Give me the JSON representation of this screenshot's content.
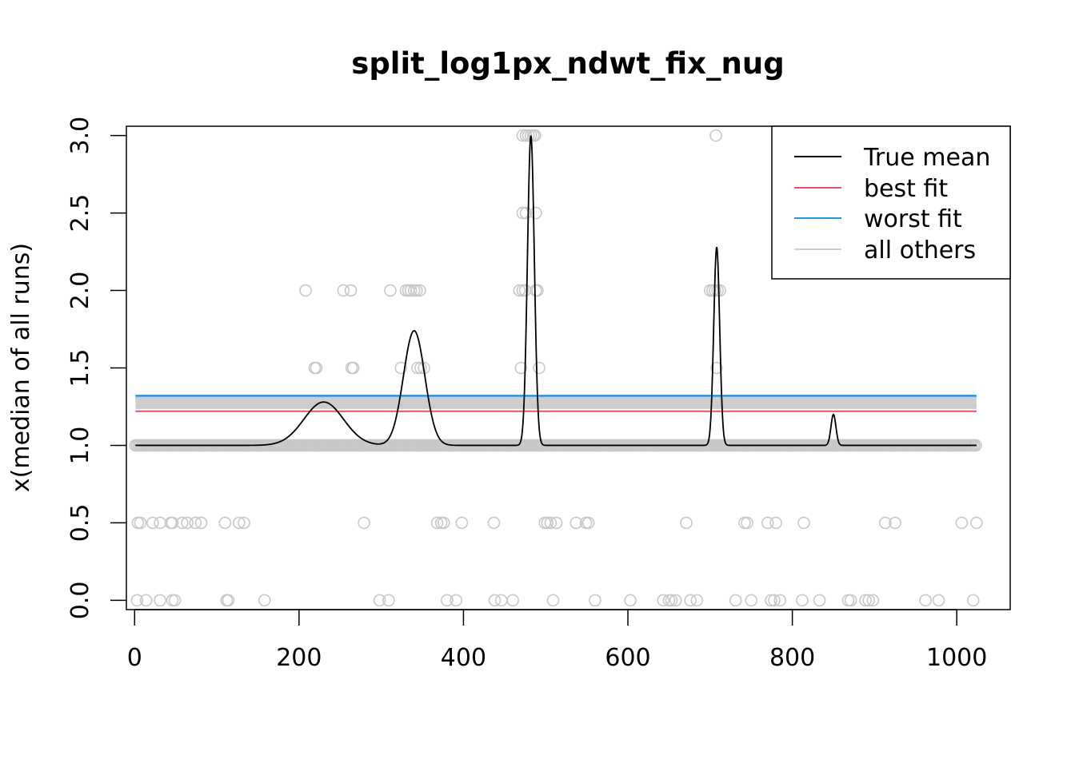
{
  "chart_data": {
    "type": "scatter",
    "title": "split_log1px_ndwt_fix_nug",
    "xlabel": "",
    "ylabel": "x(median of all runs)",
    "xlim": [
      -10,
      1065
    ],
    "ylim": [
      -0.06,
      3.06
    ],
    "xticks": [
      0,
      200,
      400,
      600,
      800,
      1000
    ],
    "yticks": [
      0.0,
      0.5,
      1.0,
      1.5,
      2.0,
      2.5,
      3.0
    ],
    "xtick_labels": [
      "0",
      "200",
      "400",
      "600",
      "800",
      "1000"
    ],
    "ytick_labels": [
      "0.0",
      "0.5",
      "1.0",
      "1.5",
      "2.0",
      "2.5",
      "3.0"
    ],
    "grid": false,
    "legend_position": "top-right",
    "colors": {
      "true_mean": "#000000",
      "best_fit": "#DF536B",
      "worst_fit": "#2297E6",
      "all_others": "#CCCCCC",
      "points": "#C8C8C8"
    },
    "legend": [
      {
        "label": "True mean",
        "color": "#000000"
      },
      {
        "label": "best fit",
        "color": "#DF536B"
      },
      {
        "label": "worst fit",
        "color": "#2297E6"
      },
      {
        "label": "all others",
        "color": "#CCCCCC"
      }
    ],
    "series": [
      {
        "name": "best fit",
        "kind": "hline",
        "y": 1.22,
        "x_range": [
          1,
          1024
        ]
      },
      {
        "name": "worst fit",
        "kind": "hline",
        "y": 1.32,
        "x_range": [
          1,
          1024
        ]
      },
      {
        "name": "all others",
        "kind": "hline_band",
        "y_values": [
          1.24,
          1.25,
          1.26,
          1.27,
          1.28,
          1.29,
          1.3,
          1.31
        ],
        "x_range": [
          1,
          1024
        ]
      },
      {
        "name": "True mean",
        "kind": "curve",
        "baseline": 1.0,
        "bumps": [
          {
            "center": 230,
            "height": 0.28,
            "width": 24
          },
          {
            "center": 340,
            "height": 0.74,
            "width": 13
          },
          {
            "center": 482,
            "height": 2.0,
            "width": 4.2
          },
          {
            "center": 708,
            "height": 1.28,
            "width": 3.6
          },
          {
            "center": 850,
            "height": 0.2,
            "width": 3.0
          }
        ],
        "x_range": [
          1,
          1024
        ]
      },
      {
        "name": "points",
        "kind": "scatter",
        "dense_y1_range": [
          1,
          1024
        ],
        "points": [
          [
            208,
            2.0
          ],
          [
            254,
            2.0
          ],
          [
            263,
            2.0
          ],
          [
            311,
            2.0
          ],
          [
            330,
            2.0
          ],
          [
            333,
            2.0
          ],
          [
            336,
            2.0
          ],
          [
            340,
            2.0
          ],
          [
            343,
            2.0
          ],
          [
            347,
            2.0
          ],
          [
            468,
            2.0
          ],
          [
            472,
            2.0
          ],
          [
            475,
            2.0
          ],
          [
            488,
            2.0
          ],
          [
            490,
            2.0
          ],
          [
            700,
            2.0
          ],
          [
            703,
            2.0
          ],
          [
            706,
            2.0
          ],
          [
            709,
            2.0
          ],
          [
            712,
            2.0
          ],
          [
            472,
            3.0
          ],
          [
            476,
            3.0
          ],
          [
            479,
            3.0
          ],
          [
            482,
            3.0
          ],
          [
            485,
            3.0
          ],
          [
            487,
            3.0
          ],
          [
            707,
            3.0
          ],
          [
            472,
            2.5
          ],
          [
            476,
            2.5
          ],
          [
            488,
            2.5
          ],
          [
            219,
            1.5
          ],
          [
            221,
            1.5
          ],
          [
            264,
            1.5
          ],
          [
            266,
            1.5
          ],
          [
            324,
            1.5
          ],
          [
            344,
            1.5
          ],
          [
            348,
            1.5
          ],
          [
            352,
            1.5
          ],
          [
            470,
            1.5
          ],
          [
            492,
            1.5
          ],
          [
            708,
            1.5
          ],
          [
            4,
            0.5
          ],
          [
            7,
            0.5
          ],
          [
            22,
            0.5
          ],
          [
            31,
            0.5
          ],
          [
            44,
            0.5
          ],
          [
            46,
            0.5
          ],
          [
            58,
            0.5
          ],
          [
            64,
            0.5
          ],
          [
            74,
            0.5
          ],
          [
            81,
            0.5
          ],
          [
            110,
            0.5
          ],
          [
            127,
            0.5
          ],
          [
            133,
            0.5
          ],
          [
            279,
            0.5
          ],
          [
            368,
            0.5
          ],
          [
            373,
            0.5
          ],
          [
            376,
            0.5
          ],
          [
            398,
            0.5
          ],
          [
            437,
            0.5
          ],
          [
            499,
            0.5
          ],
          [
            502,
            0.5
          ],
          [
            506,
            0.5
          ],
          [
            513,
            0.5
          ],
          [
            537,
            0.5
          ],
          [
            549,
            0.5
          ],
          [
            552,
            0.5
          ],
          [
            671,
            0.5
          ],
          [
            742,
            0.5
          ],
          [
            745,
            0.5
          ],
          [
            770,
            0.5
          ],
          [
            780,
            0.5
          ],
          [
            814,
            0.5
          ],
          [
            913,
            0.5
          ],
          [
            925,
            0.5
          ],
          [
            1006,
            0.5
          ],
          [
            1024,
            0.5
          ],
          [
            3,
            0.0
          ],
          [
            14,
            0.0
          ],
          [
            31,
            0.0
          ],
          [
            46,
            0.0
          ],
          [
            49,
            0.0
          ],
          [
            112,
            0.0
          ],
          [
            114,
            0.0
          ],
          [
            158,
            0.0
          ],
          [
            298,
            0.0
          ],
          [
            309,
            0.0
          ],
          [
            380,
            0.0
          ],
          [
            391,
            0.0
          ],
          [
            438,
            0.0
          ],
          [
            446,
            0.0
          ],
          [
            460,
            0.0
          ],
          [
            509,
            0.0
          ],
          [
            560,
            0.0
          ],
          [
            603,
            0.0
          ],
          [
            643,
            0.0
          ],
          [
            650,
            0.0
          ],
          [
            653,
            0.0
          ],
          [
            658,
            0.0
          ],
          [
            676,
            0.0
          ],
          [
            684,
            0.0
          ],
          [
            731,
            0.0
          ],
          [
            750,
            0.0
          ],
          [
            774,
            0.0
          ],
          [
            778,
            0.0
          ],
          [
            785,
            0.0
          ],
          [
            812,
            0.0
          ],
          [
            833,
            0.0
          ],
          [
            868,
            0.0
          ],
          [
            871,
            0.0
          ],
          [
            889,
            0.0
          ],
          [
            893,
            0.0
          ],
          [
            898,
            0.0
          ],
          [
            962,
            0.0
          ],
          [
            978,
            0.0
          ],
          [
            1020,
            0.0
          ]
        ]
      }
    ]
  }
}
